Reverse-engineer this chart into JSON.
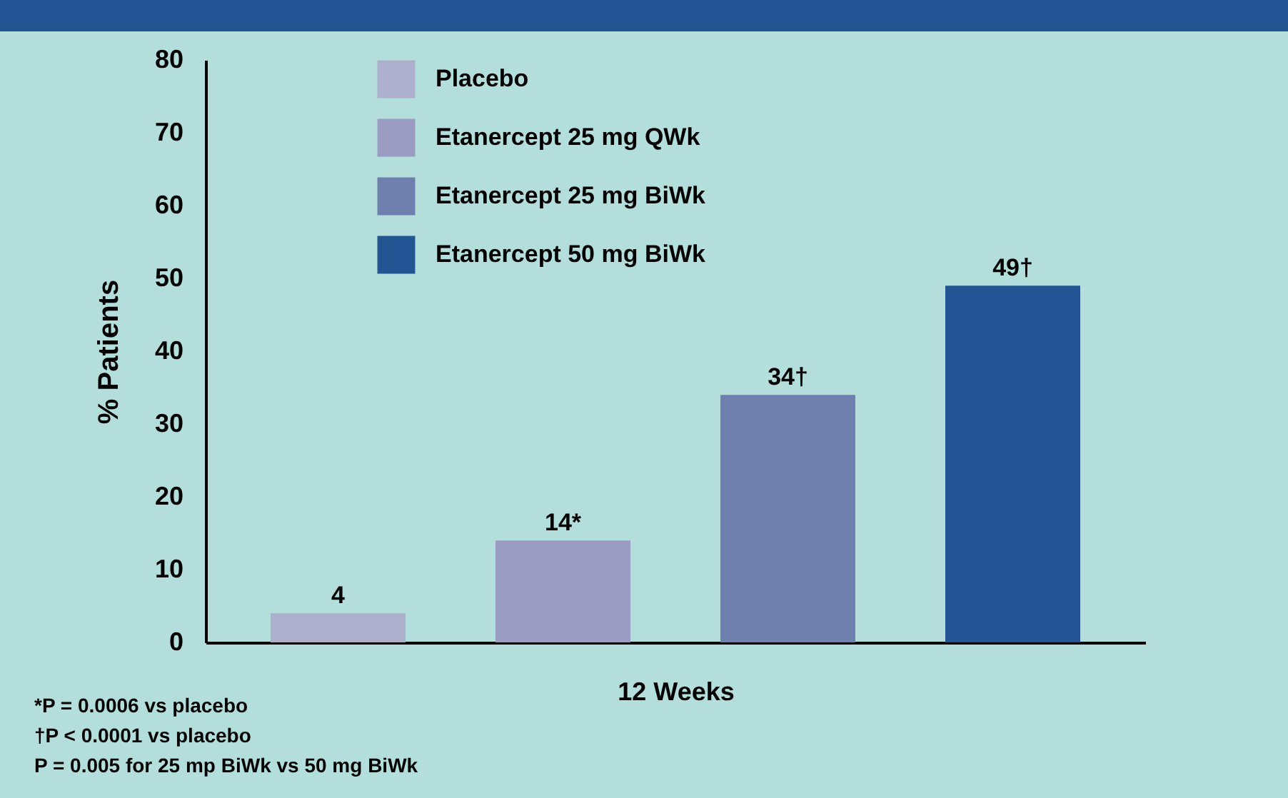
{
  "chart_data": {
    "type": "bar",
    "ylabel": "% Patients",
    "xlabel": "12 Weeks",
    "categories": [
      null
    ],
    "series": [
      {
        "name": "Placebo",
        "color": "#adb0cc",
        "values": [
          4
        ],
        "value_labels": [
          "4"
        ]
      },
      {
        "name": "Etanercept 25 mg QWk",
        "color": "#9a9cc2",
        "values": [
          14
        ],
        "value_labels": [
          "14*"
        ]
      },
      {
        "name": "Etanercept 25 mg BiWk",
        "color": "#6f7fae",
        "values": [
          34
        ],
        "value_labels": [
          "34†"
        ]
      },
      {
        "name": "Etanercept 50 mg BiWk",
        "color": "#225592",
        "values": [
          49
        ],
        "value_labels": [
          "49†"
        ]
      }
    ],
    "ylim": [
      0,
      80
    ],
    "yticks": [
      0,
      10,
      20,
      30,
      40,
      50,
      60,
      70,
      80
    ],
    "grid": false,
    "legend": "top left",
    "tick_labels": "y",
    "annotations": [
      "*P = 0.0006 vs placebo",
      "†P < 0.0001 vs placebo",
      "P = 0.005 for 25 mp BiWk vs 50 mg BiWk"
    ]
  }
}
